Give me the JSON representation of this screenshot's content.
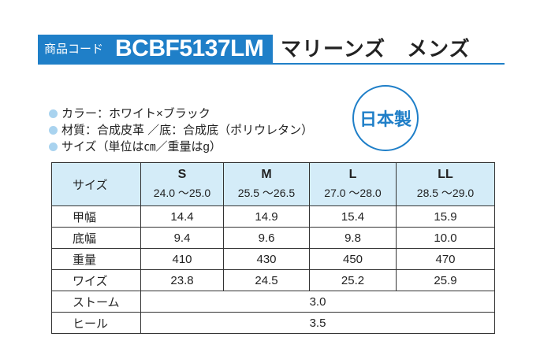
{
  "header": {
    "code_label": "商品コード",
    "code": "BCBF5137LM",
    "title": "マリーンズ　メンズ"
  },
  "specs": [
    "カラー：ホワイト×ブラック",
    "材質：合成皮革 ／底：合成底（ポリウレタン）",
    "サイズ（単位は㎝／重量はg）"
  ],
  "badge": "日本製",
  "table": {
    "corner": "サイズ",
    "sizes": [
      {
        "size": "S",
        "range": "24.0 ～25.0"
      },
      {
        "size": "M",
        "range": "25.5 ～26.5"
      },
      {
        "size": "L",
        "range": "27.0 ～28.0"
      },
      {
        "size": "LL",
        "range": "28.5 ～29.0"
      }
    ],
    "rows": [
      [
        "甲幅",
        "14.4",
        "14.9",
        "15.4",
        "15.9"
      ],
      [
        "底幅",
        "9.4",
        "9.6",
        "9.8",
        "10.0"
      ],
      [
        "重量",
        "410",
        "430",
        "450",
        "470"
      ],
      [
        "ワイズ",
        "23.8",
        "24.5",
        "25.2",
        "25.9"
      ]
    ],
    "merged_rows": [
      [
        "ストーム",
        "3.0"
      ],
      [
        "ヒール",
        "3.5"
      ]
    ]
  }
}
